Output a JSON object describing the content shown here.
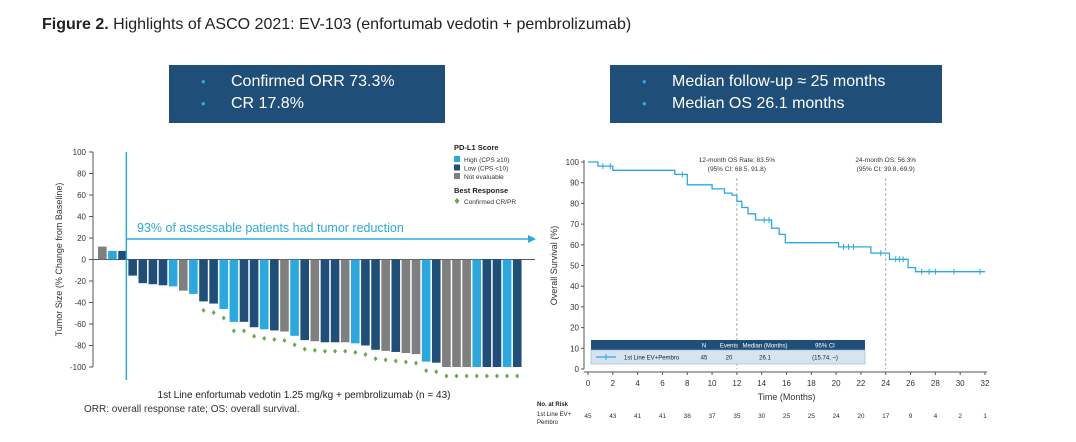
{
  "figure": {
    "label": "Figure 2.",
    "title": "Highlights of ASCO 2021: EV-103 (enfortumab vedotin + pembrolizumab)"
  },
  "left_box": [
    "Confirmed ORR 73.3%",
    "CR 17.8%"
  ],
  "right_box": [
    "Median follow-up ≈ 25 months",
    "Median OS 26.1 months"
  ],
  "footnote": "ORR: overall response rate; OS: overall survival.",
  "colors": {
    "high": "#29a9e0",
    "low": "#1f4e79",
    "not_evaluable": "#7f7f7f",
    "confirmed": "#6aa84f",
    "km_line": "#29a9e0",
    "box": "#1f4e79"
  },
  "chart_data": [
    {
      "type": "bar",
      "subtype": "waterfall",
      "xlabel": "1st Line enfortumab vedotin 1.25 mg/kg + pembrolizumab (n = 43)",
      "ylabel": "Tumor Size (% Change from Baseline)",
      "ylim": [
        -100,
        100
      ],
      "yticks": [
        "100",
        "80",
        "60",
        "40",
        "20",
        "0",
        "-20",
        "-40",
        "-60",
        "-80",
        "-100"
      ],
      "annotation": "93% of assessable patients had tumor reduction",
      "legend": {
        "title": "PD-L1 Score",
        "items": [
          "High (CPS ≥10)",
          "Low (CPS <10)",
          "Not evaluable"
        ],
        "response_title": "Best Response",
        "response_item": "Confirmed CR/PR",
        "placement": "top-right"
      },
      "bars": [
        {
          "value": 12,
          "pdl1": "not_evaluable",
          "cr_pr": false
        },
        {
          "value": 8,
          "pdl1": "high",
          "cr_pr": false
        },
        {
          "value": 8,
          "pdl1": "low",
          "cr_pr": false
        },
        {
          "value": -15,
          "pdl1": "low",
          "cr_pr": false
        },
        {
          "value": -22,
          "pdl1": "low",
          "cr_pr": false
        },
        {
          "value": -23,
          "pdl1": "low",
          "cr_pr": false
        },
        {
          "value": -24,
          "pdl1": "low",
          "cr_pr": false
        },
        {
          "value": -25,
          "pdl1": "high",
          "cr_pr": false
        },
        {
          "value": -29,
          "pdl1": "not_evaluable",
          "cr_pr": false
        },
        {
          "value": -32,
          "pdl1": "high",
          "cr_pr": false
        },
        {
          "value": -39,
          "pdl1": "low",
          "cr_pr": true
        },
        {
          "value": -41,
          "pdl1": "low",
          "cr_pr": true
        },
        {
          "value": -46,
          "pdl1": "high",
          "cr_pr": true
        },
        {
          "value": -58,
          "pdl1": "high",
          "cr_pr": true
        },
        {
          "value": -58,
          "pdl1": "low",
          "cr_pr": true
        },
        {
          "value": -63,
          "pdl1": "low",
          "cr_pr": true
        },
        {
          "value": -65,
          "pdl1": "high",
          "cr_pr": true
        },
        {
          "value": -66,
          "pdl1": "low",
          "cr_pr": true
        },
        {
          "value": -67,
          "pdl1": "not_evaluable",
          "cr_pr": true
        },
        {
          "value": -71,
          "pdl1": "high",
          "cr_pr": true
        },
        {
          "value": -75,
          "pdl1": "low",
          "cr_pr": true
        },
        {
          "value": -76,
          "pdl1": "not_evaluable",
          "cr_pr": true
        },
        {
          "value": -77,
          "pdl1": "low",
          "cr_pr": true
        },
        {
          "value": -77,
          "pdl1": "low",
          "cr_pr": true
        },
        {
          "value": -77,
          "pdl1": "not_evaluable",
          "cr_pr": true
        },
        {
          "value": -78,
          "pdl1": "high",
          "cr_pr": true
        },
        {
          "value": -80,
          "pdl1": "low",
          "cr_pr": true
        },
        {
          "value": -84,
          "pdl1": "low",
          "cr_pr": true
        },
        {
          "value": -85,
          "pdl1": "not_evaluable",
          "cr_pr": true
        },
        {
          "value": -86,
          "pdl1": "low",
          "cr_pr": true
        },
        {
          "value": -87,
          "pdl1": "not_evaluable",
          "cr_pr": true
        },
        {
          "value": -88,
          "pdl1": "not_evaluable",
          "cr_pr": true
        },
        {
          "value": -95,
          "pdl1": "high",
          "cr_pr": true
        },
        {
          "value": -96,
          "pdl1": "low",
          "cr_pr": true
        },
        {
          "value": -100,
          "pdl1": "not_evaluable",
          "cr_pr": true
        },
        {
          "value": -100,
          "pdl1": "not_evaluable",
          "cr_pr": true
        },
        {
          "value": -100,
          "pdl1": "not_evaluable",
          "cr_pr": true
        },
        {
          "value": -100,
          "pdl1": "high",
          "cr_pr": true
        },
        {
          "value": -100,
          "pdl1": "low",
          "cr_pr": true
        },
        {
          "value": -100,
          "pdl1": "low",
          "cr_pr": true
        },
        {
          "value": -100,
          "pdl1": "high",
          "cr_pr": true
        },
        {
          "value": -100,
          "pdl1": "low",
          "cr_pr": true
        }
      ]
    },
    {
      "type": "line",
      "subtype": "kaplan-meier",
      "xlabel": "Time (Months)",
      "ylabel": "Overall Survival (%)",
      "xlim": [
        0,
        32
      ],
      "ylim": [
        0,
        100
      ],
      "xticks": [
        "0",
        "2",
        "4",
        "6",
        "8",
        "10",
        "12",
        "14",
        "16",
        "18",
        "20",
        "22",
        "24",
        "26",
        "28",
        "30",
        "32"
      ],
      "yticks": [
        "100",
        "90",
        "80",
        "70",
        "60",
        "50",
        "40",
        "30",
        "20",
        "10",
        "0"
      ],
      "series": [
        {
          "name": "1st Line EV+Pembro",
          "x": [
            0,
            0.8,
            0.8,
            2,
            2,
            7,
            7,
            8,
            8,
            10,
            10,
            11,
            11,
            11.6,
            11.6,
            12,
            12,
            12.4,
            12.4,
            12.9,
            12.9,
            13.5,
            13.5,
            14.8,
            14.8,
            15.4,
            15.4,
            15.9,
            15.9,
            20.2,
            20.2,
            22.8,
            22.8,
            24.3,
            24.3,
            25.8,
            25.8,
            26.4,
            26.4,
            32
          ],
          "y": [
            100,
            100,
            98,
            98,
            96,
            96,
            94,
            94,
            89,
            89,
            87,
            87,
            85,
            85,
            84,
            84,
            81,
            81,
            78,
            78,
            75,
            75,
            72,
            72,
            68,
            68,
            65,
            65,
            61,
            61,
            59,
            59,
            56,
            56,
            53,
            53,
            49,
            49,
            47,
            47
          ],
          "censor_x": [
            1.2,
            1.8,
            7.6,
            14.2,
            14.6,
            20.6,
            21.0,
            21.4,
            23.6,
            24.8,
            25.1,
            25.4,
            26.9,
            27.5,
            28.0,
            29.5,
            31.6
          ],
          "censor_y": [
            98,
            98,
            94,
            72,
            72,
            59,
            59,
            59,
            56,
            53,
            53,
            53,
            47,
            47,
            47,
            47,
            47
          ]
        }
      ],
      "annotations": [
        {
          "x": 12,
          "lines": [
            "12-month OS Rate: 83.5%",
            "(95% CI: 68.5, 91.8)"
          ]
        },
        {
          "x": 24,
          "lines": [
            "24-month OS: 56.3%",
            "(95% CI: 39.8, 69.9)"
          ]
        }
      ],
      "table": {
        "headers": [
          "N",
          "Events",
          "Median (Months)",
          "95% CI"
        ],
        "row_label": "1st Line EV+Pembro",
        "values": [
          "45",
          "20",
          "26.1",
          "(15.74, –)"
        ]
      },
      "at_risk": {
        "title": "No. at Risk",
        "row_label": "1st Line EV+ Pembro",
        "values": [
          "45",
          "43",
          "41",
          "41",
          "38",
          "37",
          "35",
          "30",
          "25",
          "25",
          "24",
          "20",
          "17",
          "9",
          "4",
          "2",
          "1"
        ]
      }
    }
  ]
}
